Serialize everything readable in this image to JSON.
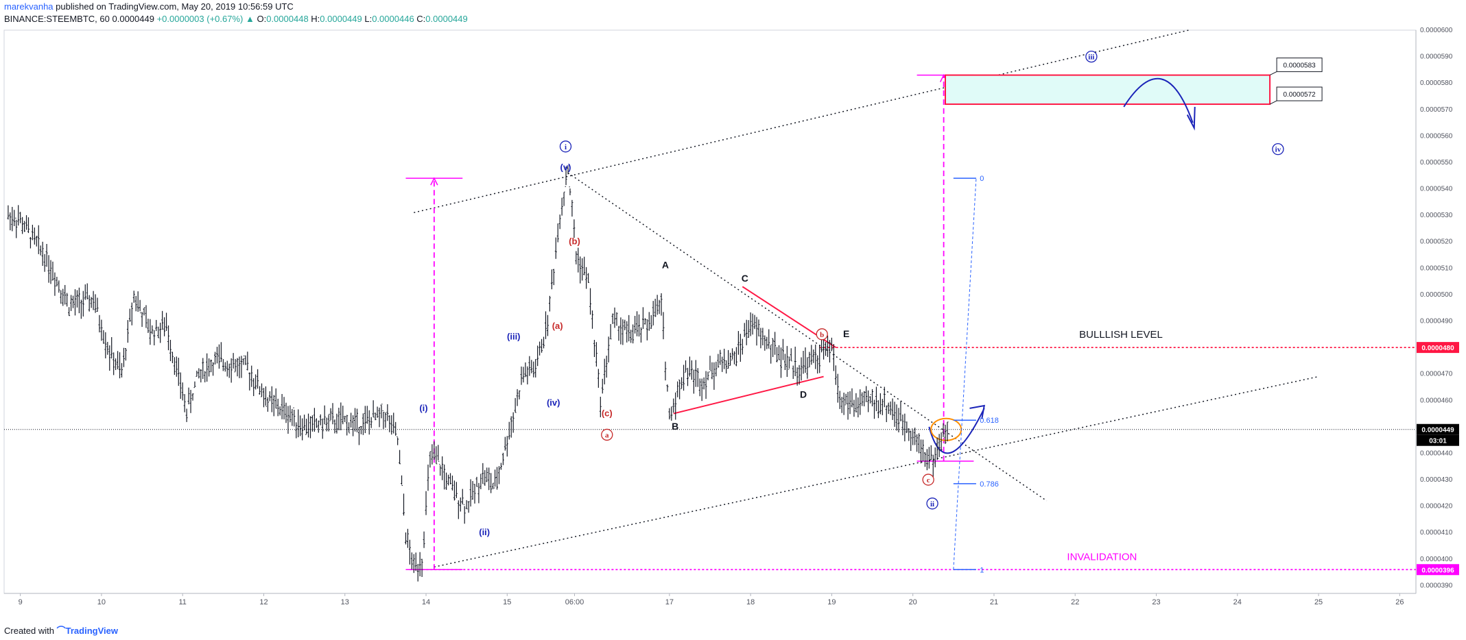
{
  "header": {
    "author": "marekvanha",
    "published_text": "published on TradingView.com, May 20, 2019 10:56:59 UTC",
    "symbol": "BINANCE:STEEMBTC, 60",
    "last": "0.0000449",
    "change": "+0.0000003 (+0.67%)",
    "o_label": "O:",
    "o": "0.0000448",
    "h_label": "H:",
    "h": "0.0000449",
    "l_label": "L:",
    "l": "0.0000446",
    "c_label": "C:",
    "c": "0.0000449"
  },
  "footer": {
    "created_with": "Created with",
    "brand": "TradingView"
  },
  "chart_data": {
    "type": "line",
    "title": "",
    "xlabel": "",
    "ylabel": "",
    "ylim": [
      3.87e-05,
      6e-05
    ],
    "xlim": [
      8.8,
      26.2
    ],
    "x_ticks": [
      {
        "x": 9,
        "label": "9"
      },
      {
        "x": 10,
        "label": "10"
      },
      {
        "x": 11,
        "label": "11"
      },
      {
        "x": 12,
        "label": "12"
      },
      {
        "x": 13,
        "label": "13"
      },
      {
        "x": 14,
        "label": "14"
      },
      {
        "x": 15,
        "label": "15"
      },
      {
        "x": 15.83,
        "label": "06:00"
      },
      {
        "x": 17,
        "label": "17"
      },
      {
        "x": 18,
        "label": "18"
      },
      {
        "x": 19,
        "label": "19"
      },
      {
        "x": 20,
        "label": "20"
      },
      {
        "x": 21,
        "label": "21"
      },
      {
        "x": 22,
        "label": "22"
      },
      {
        "x": 23,
        "label": "23"
      },
      {
        "x": 24,
        "label": "24"
      },
      {
        "x": 25,
        "label": "25"
      },
      {
        "x": 26,
        "label": "26"
      }
    ],
    "y_ticks": [
      "0.0000390",
      "0.0000400",
      "0.0000410",
      "0.0000420",
      "0.0000430",
      "0.0000440",
      "0.0000450",
      "0.0000460",
      "0.0000470",
      "0.0000480",
      "0.0000490",
      "0.0000500",
      "0.0000510",
      "0.0000520",
      "0.0000530",
      "0.0000540",
      "0.0000550",
      "0.0000560",
      "0.0000570",
      "0.0000580",
      "0.0000590",
      "0.0000600"
    ],
    "price_path": [
      [
        8.85,
        530
      ],
      [
        9.0,
        528
      ],
      [
        9.3,
        515
      ],
      [
        9.6,
        496
      ],
      [
        9.9,
        498
      ],
      [
        10.1,
        478
      ],
      [
        10.25,
        470
      ],
      [
        10.4,
        500
      ],
      [
        10.6,
        486
      ],
      [
        10.8,
        488
      ],
      [
        11.05,
        456
      ],
      [
        11.2,
        470
      ],
      [
        11.4,
        475
      ],
      [
        11.6,
        474
      ],
      [
        11.8,
        472
      ],
      [
        12.05,
        460
      ],
      [
        12.3,
        455
      ],
      [
        12.5,
        450
      ],
      [
        12.8,
        452
      ],
      [
        13.0,
        452
      ],
      [
        13.2,
        451
      ],
      [
        13.35,
        453
      ],
      [
        13.5,
        455
      ],
      [
        13.65,
        445
      ],
      [
        13.75,
        410
      ],
      [
        13.8,
        402
      ],
      [
        13.85,
        397
      ],
      [
        13.95,
        400
      ],
      [
        14.05,
        438
      ],
      [
        14.15,
        437
      ],
      [
        14.25,
        430
      ],
      [
        14.35,
        425
      ],
      [
        14.5,
        420
      ],
      [
        14.7,
        432
      ],
      [
        14.85,
        427
      ],
      [
        15.0,
        445
      ],
      [
        15.2,
        470
      ],
      [
        15.35,
        472
      ],
      [
        15.5,
        490
      ],
      [
        15.65,
        530
      ],
      [
        15.75,
        548
      ],
      [
        15.85,
        515
      ],
      [
        16.0,
        505
      ],
      [
        16.15,
        460
      ],
      [
        16.3,
        490
      ],
      [
        16.5,
        485
      ],
      [
        16.7,
        488
      ],
      [
        16.9,
        496
      ],
      [
        17.0,
        454
      ],
      [
        17.2,
        472
      ],
      [
        17.4,
        467
      ],
      [
        17.6,
        474
      ],
      [
        17.8,
        476
      ],
      [
        18.0,
        489
      ],
      [
        18.2,
        482
      ],
      [
        18.4,
        476
      ],
      [
        18.6,
        472
      ],
      [
        18.8,
        476
      ],
      [
        19.0,
        480
      ],
      [
        19.1,
        460
      ],
      [
        19.3,
        458
      ],
      [
        19.5,
        460
      ],
      [
        19.7,
        458
      ],
      [
        19.85,
        452
      ],
      [
        19.95,
        450
      ],
      [
        20.05,
        444
      ],
      [
        20.15,
        440
      ],
      [
        20.25,
        437
      ],
      [
        20.35,
        445
      ],
      [
        20.45,
        449
      ]
    ],
    "current_price": "0.0000449",
    "countdown": "03:01",
    "horizontal_levels": [
      {
        "price": "0.0000480",
        "label": "BULLLISH LEVEL",
        "color": "#ff1744"
      },
      {
        "price": "0.0000396",
        "label": "INVALIDATION",
        "color": "#ff00ff"
      }
    ],
    "target_zone": {
      "x_from": 20.4,
      "x_to": 24.4,
      "top": "0.0000583",
      "bottom": "0.0000572",
      "fill": "#e0fbf8",
      "border": "#ff1744"
    },
    "fib_levels": [
      "0",
      "0.618",
      "0.786",
      "1"
    ],
    "wave_labels_blue_circled": [
      "i",
      "ii",
      "iii",
      "iv"
    ],
    "wave_labels_blue": [
      "(i)",
      "(ii)",
      "(iii)",
      "(iv)",
      "(v)"
    ],
    "wave_labels_red": [
      "(a)",
      "(b)",
      "(c)"
    ],
    "wave_labels_red_circled": [
      "a",
      "b",
      "c"
    ],
    "triangle_labels": [
      "A",
      "B",
      "C",
      "D",
      "E"
    ],
    "colors": {
      "blue": "#1a23b8",
      "red": "#c62828",
      "magenta": "#ff00ff",
      "orange": "#ff8f00",
      "fib": "#2962ff"
    }
  }
}
